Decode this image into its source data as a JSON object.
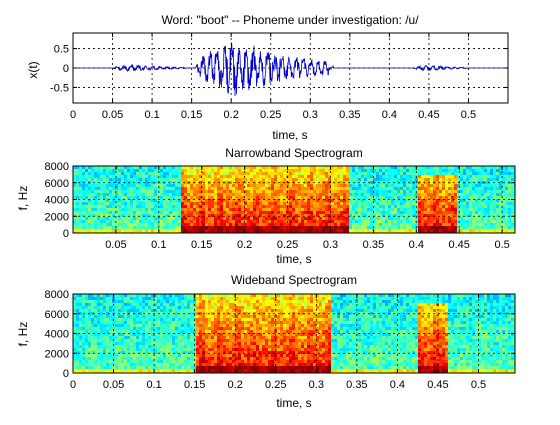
{
  "chart_data": [
    {
      "type": "line",
      "title": "Word: \"boot\" --  Phoneme under investigation: /u/",
      "xlabel": "time, s",
      "ylabel": "x(t)",
      "xlim": [
        0,
        0.55
      ],
      "ylim": [
        -0.9,
        0.9
      ],
      "x_ticks": [
        0,
        0.05,
        0.1,
        0.15,
        0.2,
        0.25,
        0.3,
        0.35,
        0.4,
        0.45,
        0.5
      ],
      "x_tick_labels": [
        "0",
        "0.05",
        "0.1",
        "0.15",
        "0.2",
        "0.25",
        "0.3",
        "0.35",
        "0.4",
        "0.45",
        "0.5"
      ],
      "y_ticks": [
        0.5,
        0,
        -0.5
      ],
      "y_tick_labels": [
        "0.5",
        "0",
        "-0.5"
      ],
      "grid": true,
      "line_color": "#0000cc",
      "segments": [
        {
          "x_start": 0.05,
          "x_end": 0.145,
          "peak_amplitude": 0.1
        },
        {
          "x_start": 0.155,
          "x_end": 0.33,
          "peak_amplitude": 0.85
        },
        {
          "x_start": 0.43,
          "x_end": 0.5,
          "peak_amplitude": 0.08
        }
      ]
    },
    {
      "type": "heatmap",
      "title": "Narrowband Spectrogram",
      "xlabel": "time, s",
      "ylabel": "f, Hz",
      "xlim": [
        0,
        0.515
      ],
      "ylim": [
        0,
        8000
      ],
      "x_ticks": [
        0.05,
        0.1,
        0.15,
        0.2,
        0.25,
        0.3,
        0.35,
        0.4,
        0.45,
        0.5
      ],
      "x_tick_labels": [
        "0.05",
        "0.1",
        "0.15",
        "0.2",
        "0.25",
        "0.3",
        "0.35",
        "0.4",
        "0.45",
        "0.5"
      ],
      "y_ticks": [
        0,
        2000,
        4000,
        6000,
        8000
      ],
      "y_tick_labels": [
        "0",
        "2000",
        "4000",
        "6000",
        "8000"
      ],
      "grid": true,
      "colormap": "jet",
      "high_energy_regions": [
        {
          "t_start": 0.125,
          "t_end": 0.32,
          "f_top": 8000
        },
        {
          "t_start": 0.4,
          "t_end": 0.445,
          "f_top": 7200
        }
      ]
    },
    {
      "type": "heatmap",
      "title": "Wideband Spectrogram",
      "xlabel": "time, s",
      "ylabel": "f, Hz",
      "xlim": [
        0,
        0.545
      ],
      "ylim": [
        0,
        8000
      ],
      "x_ticks": [
        0,
        0.05,
        0.1,
        0.15,
        0.2,
        0.25,
        0.3,
        0.35,
        0.4,
        0.45,
        0.5
      ],
      "x_tick_labels": [
        "0",
        "0.05",
        "0.1",
        "0.15",
        "0.2",
        "0.25",
        "0.3",
        "0.35",
        "0.4",
        "0.45",
        "0.5"
      ],
      "y_ticks": [
        0,
        2000,
        4000,
        6000,
        8000
      ],
      "y_tick_labels": [
        "0",
        "2000",
        "4000",
        "6000",
        "8000"
      ],
      "grid": true,
      "colormap": "jet",
      "high_energy_regions": [
        {
          "t_start": 0.15,
          "t_end": 0.315,
          "f_top": 8000
        },
        {
          "t_start": 0.425,
          "t_end": 0.46,
          "f_top": 7200
        }
      ]
    }
  ]
}
